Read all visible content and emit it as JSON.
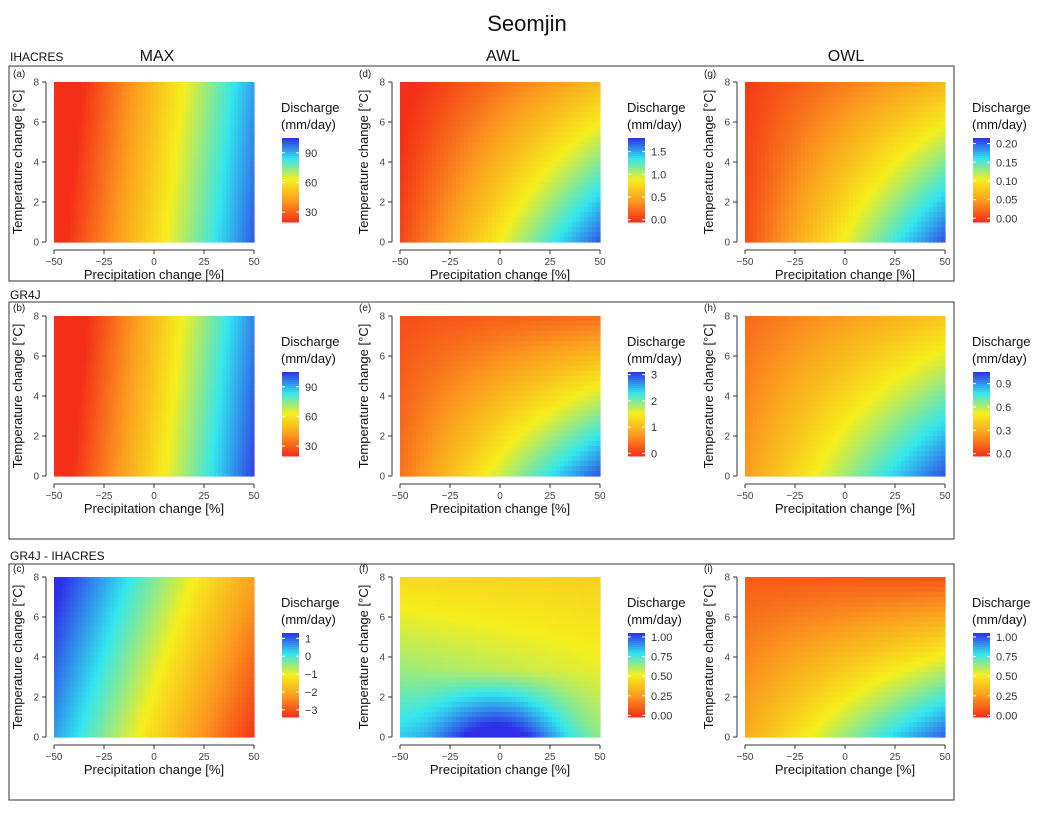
{
  "figure_title": "Seomjin",
  "columns": [
    "MAX",
    "AWL",
    "OWL"
  ],
  "rows": [
    {
      "label": "IHACRES"
    },
    {
      "label": "GR4J"
    },
    {
      "label": "GR4J - IHACRES"
    }
  ],
  "axes": {
    "xlabel": "Precipitation change [%]",
    "ylabel": "Temperature change [°C]",
    "xticks": [
      "−50",
      "−25",
      "0",
      "25",
      "50"
    ],
    "yticks": [
      "0",
      "2",
      "4",
      "6",
      "8"
    ]
  },
  "legend_title_line1": "Discharge",
  "legend_title_line2": "(mm/day)",
  "colors": {
    "high": "#2f2fe6",
    "cyan": "#33e6ee",
    "mid": "#f6ee1c",
    "orange": "#fb9a1f",
    "low": "#f42e17"
  },
  "chart_data": [
    {
      "type": "heatmap",
      "panel": "(a)",
      "row": "IHACRES",
      "column": "MAX",
      "xlabel": "Precipitation change [%]",
      "ylabel": "Temperature change [°C]",
      "x_range": [
        -50,
        50
      ],
      "y_range": [
        0,
        8
      ],
      "colorbar_ticks": [
        "30",
        "60",
        "90"
      ],
      "colorbar_range": [
        20,
        105
      ],
      "surface": {
        "A": [
          15,
          -0.9
        ],
        "B": [
          100,
          -1.0
        ],
        "C": [
          15,
          -0.8
        ],
        "D": [
          100,
          -0.8
        ]
      }
    },
    {
      "type": "heatmap",
      "panel": "(b)",
      "row": "GR4J",
      "column": "MAX",
      "xlabel": "Precipitation change [%]",
      "ylabel": "Temperature change [°C]",
      "x_range": [
        -50,
        50
      ],
      "y_range": [
        0,
        8
      ],
      "colorbar_ticks": [
        "30",
        "60",
        "90"
      ],
      "colorbar_range": [
        20,
        105
      ],
      "surface": {
        "A": [
          12,
          -0.9
        ],
        "B": [
          103,
          -1.0
        ],
        "C": [
          12,
          -0.8
        ],
        "D": [
          103,
          -0.8
        ]
      }
    },
    {
      "type": "heatmap",
      "panel": "(c)",
      "row": "GR4J - IHACRES",
      "column": "MAX",
      "xlabel": "Precipitation change [%]",
      "ylabel": "Temperature change [°C]",
      "x_range": [
        -50,
        50
      ],
      "y_range": [
        0,
        8
      ],
      "colorbar_ticks": [
        "1",
        "0",
        "−1",
        "−2",
        "−3"
      ],
      "colorbar_range": [
        -3.4,
        1.3
      ],
      "surface": {
        "A": [
          0.6,
          0.02
        ],
        "B": [
          -3.3,
          0.06
        ],
        "C": [
          1.3,
          0.01
        ],
        "D": [
          -2.6,
          0.04
        ]
      }
    },
    {
      "type": "heatmap",
      "panel": "(d)",
      "row": "IHACRES",
      "column": "AWL",
      "xlabel": "Precipitation change [%]",
      "ylabel": "Temperature change [°C]",
      "x_range": [
        -50,
        50
      ],
      "y_range": [
        0,
        8
      ],
      "colorbar_ticks": [
        "0.0",
        "0.5",
        "1.0",
        "1.5"
      ],
      "colorbar_range": [
        -0.05,
        1.8
      ],
      "surface": {
        "A": [
          0.05,
          -0.02
        ],
        "B": [
          1.7,
          -0.12
        ],
        "C": [
          0.05,
          -0.02
        ],
        "D": [
          1.55,
          -0.12
        ]
      }
    },
    {
      "type": "heatmap",
      "panel": "(e)",
      "row": "GR4J",
      "column": "AWL",
      "xlabel": "Precipitation change [%]",
      "ylabel": "Temperature change [°C]",
      "x_range": [
        -50,
        50
      ],
      "y_range": [
        0,
        8
      ],
      "colorbar_ticks": [
        "0",
        "1",
        "2",
        "3"
      ],
      "colorbar_range": [
        -0.1,
        3.1
      ],
      "surface": {
        "A": [
          0.4,
          -0.02
        ],
        "B": [
          2.95,
          -0.16
        ],
        "C": [
          0.3,
          -0.02
        ],
        "D": [
          1.65,
          -0.12
        ]
      }
    },
    {
      "type": "heatmap",
      "panel": "(f)",
      "row": "GR4J - IHACRES",
      "column": "AWL",
      "xlabel": "Precipitation change [%]",
      "ylabel": "Temperature change [°C]",
      "x_range": [
        -50,
        50
      ],
      "y_range": [
        0,
        8
      ],
      "colorbar_ticks": [
        "0.00",
        "0.25",
        "0.50",
        "0.75",
        "1.00"
      ],
      "colorbar_range": [
        -0.02,
        1.05
      ],
      "surface": {
        "A": [
          0.78,
          0.0
        ],
        "B": [
          0.62,
          0.0
        ],
        "C": [
          0.45,
          0.0
        ],
        "D": [
          0.42,
          0.0
        ]
      }
    },
    {
      "type": "heatmap",
      "panel": "(g)",
      "row": "IHACRES",
      "column": "OWL",
      "xlabel": "Precipitation change [%]",
      "ylabel": "Temperature change [°C]",
      "x_range": [
        -50,
        50
      ],
      "y_range": [
        0,
        8
      ],
      "colorbar_ticks": [
        "0.00",
        "0.05",
        "0.10",
        "0.15",
        "0.20"
      ],
      "colorbar_range": [
        -0.01,
        0.215
      ],
      "surface": {
        "A": [
          0.005,
          -0.001
        ],
        "B": [
          0.205,
          -0.015
        ],
        "C": [
          0.005,
          -0.001
        ],
        "D": [
          0.185,
          -0.015
        ]
      }
    },
    {
      "type": "heatmap",
      "panel": "(h)",
      "row": "GR4J",
      "column": "OWL",
      "xlabel": "Precipitation change [%]",
      "ylabel": "Temperature change [°C]",
      "x_range": [
        -50,
        50
      ],
      "y_range": [
        0,
        8
      ],
      "colorbar_ticks": [
        "0.0",
        "0.3",
        "0.6",
        "0.9"
      ],
      "colorbar_range": [
        -0.03,
        1.05
      ],
      "surface": {
        "A": [
          0.25,
          -0.01
        ],
        "B": [
          1.0,
          -0.03
        ],
        "C": [
          0.2,
          -0.01
        ],
        "D": [
          0.62,
          -0.02
        ]
      }
    },
    {
      "type": "heatmap",
      "panel": "(i)",
      "row": "GR4J - IHACRES",
      "column": "OWL",
      "xlabel": "Precipitation change [%]",
      "ylabel": "Temperature change [°C]",
      "x_range": [
        -50,
        50
      ],
      "y_range": [
        0,
        8
      ],
      "colorbar_ticks": [
        "0.00",
        "0.25",
        "0.50",
        "0.75",
        "1.00"
      ],
      "colorbar_range": [
        -0.02,
        1.05
      ],
      "surface": {
        "A": [
          0.3,
          -0.02
        ],
        "B": [
          0.98,
          -0.06
        ],
        "C": [
          0.25,
          -0.02
        ],
        "D": [
          0.55,
          -0.04
        ]
      }
    }
  ]
}
